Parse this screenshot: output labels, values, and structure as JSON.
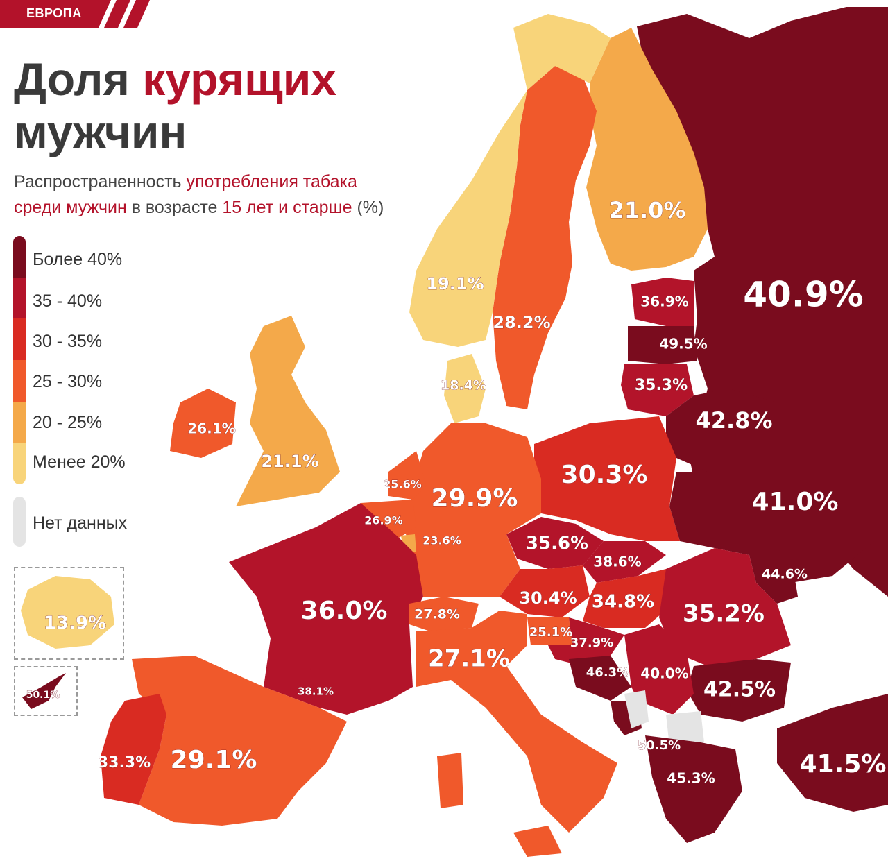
{
  "header": {
    "tag": "ЕВРОПА"
  },
  "title": {
    "part1": "Доля ",
    "accent": "курящих",
    "line2": "мужчин"
  },
  "subtitle": {
    "s1": "Распространенность ",
    "s2": "употребления табака",
    "s3": "среди мужчин",
    "s4": " в возрасте ",
    "s5": "15 лет и старше",
    "s6": " (%)"
  },
  "colors": {
    "over40": "#7a0c1e",
    "c35_40": "#b3142a",
    "c30_35": "#d92b22",
    "c25_30": "#f0592b",
    "c20_25": "#f4a94a",
    "under20": "#f8d47a",
    "nodata": "#e4e4e4"
  },
  "legend": {
    "items": [
      "Более 40%",
      "35 - 40%",
      "30 - 35%",
      "25 - 30%",
      "20 - 25%",
      "Менее 20%"
    ],
    "nodata": "Нет данных"
  },
  "countries": [
    {
      "name": "Russia",
      "value": "40.9%",
      "cls": "over40"
    },
    {
      "name": "Finland",
      "value": "21.0%",
      "cls": "c20_25"
    },
    {
      "name": "Norway",
      "value": "19.1%",
      "cls": "under20"
    },
    {
      "name": "Sweden",
      "value": "28.2%",
      "cls": "c25_30"
    },
    {
      "name": "Estonia",
      "value": "36.9%",
      "cls": "c35_40"
    },
    {
      "name": "Latvia",
      "value": "49.5%",
      "cls": "over40"
    },
    {
      "name": "Lithuania",
      "value": "35.3%",
      "cls": "c35_40"
    },
    {
      "name": "Belarus",
      "value": "42.8%",
      "cls": "over40"
    },
    {
      "name": "Denmark",
      "value": "18.4%",
      "cls": "under20"
    },
    {
      "name": "Ireland",
      "value": "26.1%",
      "cls": "c25_30"
    },
    {
      "name": "United Kingdom",
      "value": "21.1%",
      "cls": "c20_25"
    },
    {
      "name": "Netherlands",
      "value": "25.6%",
      "cls": "c25_30"
    },
    {
      "name": "Belgium",
      "value": "26.9%",
      "cls": "c25_30"
    },
    {
      "name": "Luxembourg",
      "value": "23.6%",
      "cls": "c20_25"
    },
    {
      "name": "Germany",
      "value": "29.9%",
      "cls": "c25_30"
    },
    {
      "name": "Poland",
      "value": "30.3%",
      "cls": "c30_35"
    },
    {
      "name": "Ukraine",
      "value": "41.0%",
      "cls": "over40"
    },
    {
      "name": "Czechia",
      "value": "35.6%",
      "cls": "c35_40"
    },
    {
      "name": "Slovakia",
      "value": "38.6%",
      "cls": "c35_40"
    },
    {
      "name": "Moldova",
      "value": "44.6%",
      "cls": "over40"
    },
    {
      "name": "Austria",
      "value": "30.4%",
      "cls": "c30_35"
    },
    {
      "name": "Hungary",
      "value": "34.8%",
      "cls": "c30_35"
    },
    {
      "name": "Romania",
      "value": "35.2%",
      "cls": "c35_40"
    },
    {
      "name": "France",
      "value": "36.0%",
      "cls": "c35_40"
    },
    {
      "name": "Switzerland",
      "value": "27.8%",
      "cls": "c25_30"
    },
    {
      "name": "Slovenia",
      "value": "25.1%",
      "cls": "c25_30"
    },
    {
      "name": "Croatia",
      "value": "37.9%",
      "cls": "c35_40"
    },
    {
      "name": "Bosnia",
      "value": "46.3%",
      "cls": "over40"
    },
    {
      "name": "Serbia",
      "value": "40.0%",
      "cls": "c35_40"
    },
    {
      "name": "Bulgaria",
      "value": "42.5%",
      "cls": "over40"
    },
    {
      "name": "Italy",
      "value": "27.1%",
      "cls": "c25_30"
    },
    {
      "name": "Monaco",
      "value": "38.1%",
      "cls": "c35_40"
    },
    {
      "name": "Montenegro",
      "value": "50.5%",
      "cls": "over40"
    },
    {
      "name": "Greece",
      "value": "45.3%",
      "cls": "over40"
    },
    {
      "name": "Turkey",
      "value": "41.5%",
      "cls": "over40"
    },
    {
      "name": "Portugal",
      "value": "33.3%",
      "cls": "c30_35"
    },
    {
      "name": "Spain",
      "value": "29.1%",
      "cls": "c25_30"
    },
    {
      "name": "Iceland",
      "value": "13.9%",
      "cls": "under20"
    },
    {
      "name": "Cyprus",
      "value": "50.1%",
      "cls": "over40"
    }
  ]
}
